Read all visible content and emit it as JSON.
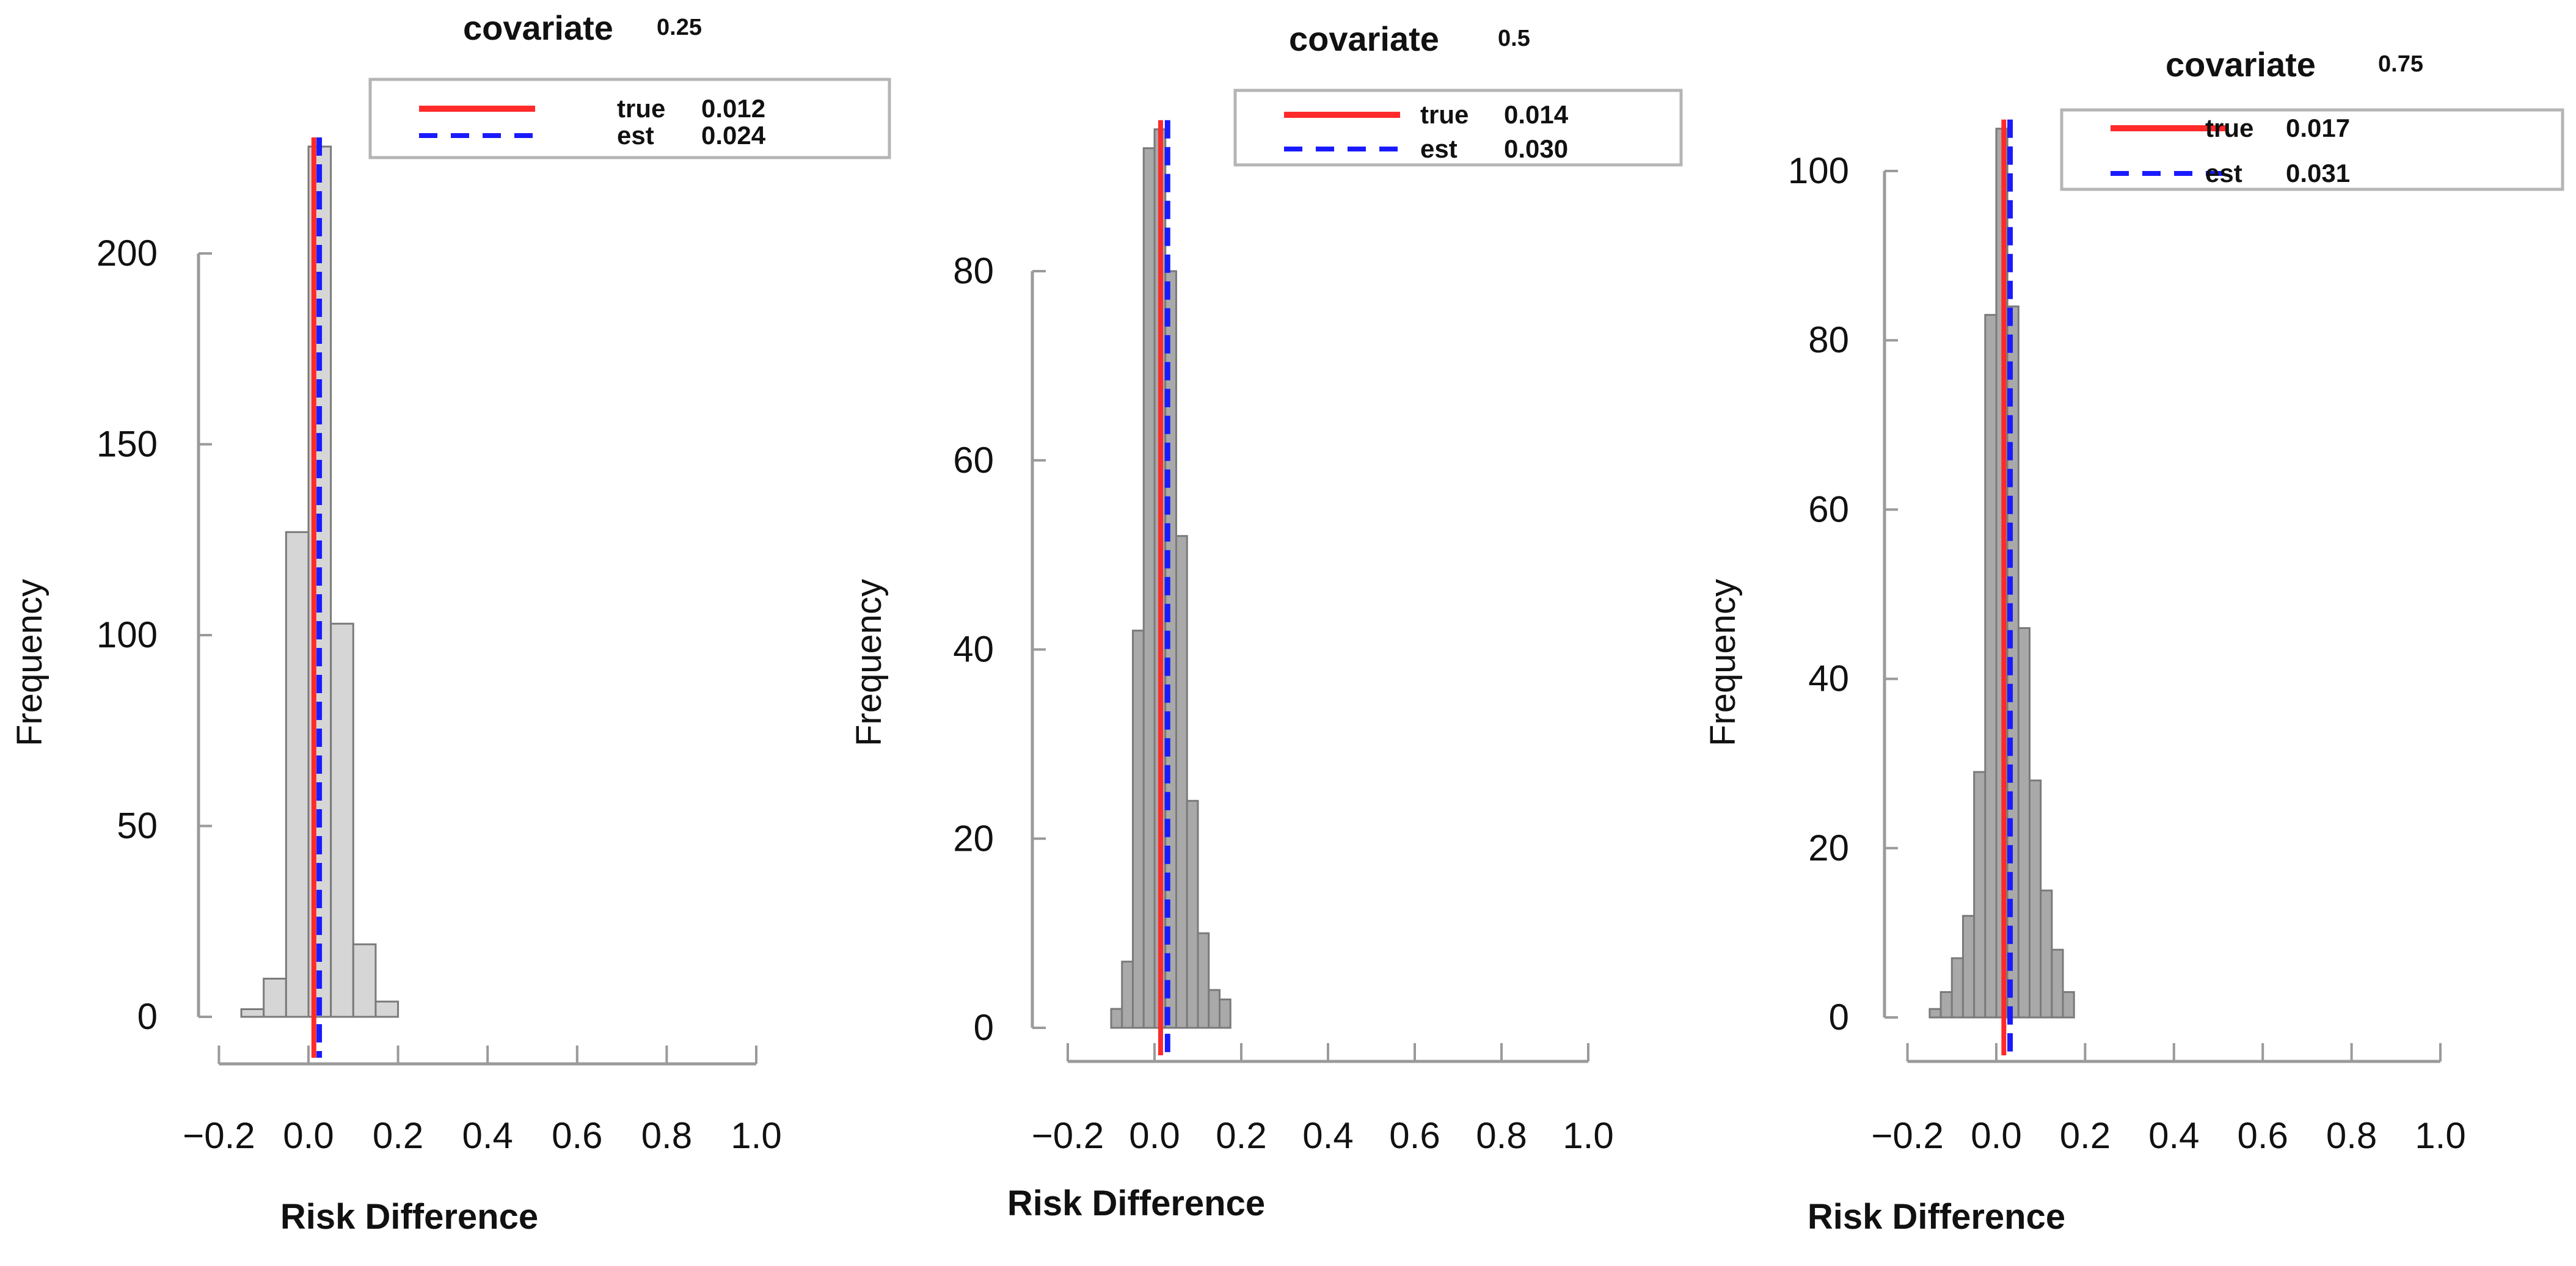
{
  "figure": {
    "description": "Three histograms of simulated risk differences for covariate levels 0.25, 0.5 and 0.75"
  },
  "chart_data": [
    {
      "type": "bar",
      "title_prefix": "covariate",
      "title_value": "0.25",
      "xlabel": "Risk Difference",
      "ylabel": "Frequency",
      "xlim": [
        -0.2,
        1.0
      ],
      "ylim": [
        0,
        200
      ],
      "xticks": [
        "-0.2",
        "0.0",
        "0.2",
        "0.4",
        "0.6",
        "0.8",
        "1.0"
      ],
      "yticks": [
        "0",
        "50",
        "100",
        "150",
        "200"
      ],
      "bin_edges": [
        -0.15,
        -0.1,
        -0.05,
        0.0,
        0.05,
        0.1,
        0.15,
        0.2
      ],
      "values": [
        2,
        10,
        127,
        228,
        103,
        19,
        4
      ],
      "vlines": [
        {
          "name": "true",
          "label": "true",
          "value": 0.012,
          "value_label": "0.012",
          "color": "#ff2a2a",
          "style": "solid"
        },
        {
          "name": "est",
          "label": "est",
          "value": 0.024,
          "value_label": "0.024",
          "color": "#1a1aff",
          "style": "dashed"
        }
      ]
    },
    {
      "type": "bar",
      "title_prefix": "covariate",
      "title_value": "0.5",
      "xlabel": "Risk Difference",
      "ylabel": "Frequency",
      "xlim": [
        -0.2,
        1.0
      ],
      "ylim": [
        0,
        80
      ],
      "xticks": [
        "-0.2",
        "0.0",
        "0.2",
        "0.4",
        "0.6",
        "0.8",
        "1.0"
      ],
      "yticks": [
        "0",
        "20",
        "40",
        "60",
        "80"
      ],
      "bin_edges": [
        -0.1,
        -0.075,
        -0.05,
        -0.025,
        0.0,
        0.025,
        0.05,
        0.075,
        0.1,
        0.125,
        0.15,
        0.175
      ],
      "values": [
        2,
        7,
        42,
        93,
        95,
        80,
        52,
        24,
        10,
        4,
        3
      ],
      "vlines": [
        {
          "name": "true",
          "label": "true",
          "value": 0.014,
          "value_label": "0.014",
          "color": "#ff2a2a",
          "style": "solid"
        },
        {
          "name": "est",
          "label": "est",
          "value": 0.03,
          "value_label": "0.030",
          "color": "#1a1aff",
          "style": "dashed"
        }
      ]
    },
    {
      "type": "bar",
      "title_prefix": "covariate",
      "title_value": "0.75",
      "xlabel": "Risk Difference",
      "ylabel": "Frequency",
      "xlim": [
        -0.2,
        1.0
      ],
      "ylim": [
        0,
        100
      ],
      "xticks": [
        "-0.2",
        "0.0",
        "0.2",
        "0.4",
        "0.6",
        "0.8",
        "1.0"
      ],
      "yticks": [
        "0",
        "20",
        "40",
        "60",
        "80",
        "100"
      ],
      "bin_edges": [
        -0.15,
        -0.125,
        -0.1,
        -0.075,
        -0.05,
        -0.025,
        0.0,
        0.025,
        0.05,
        0.075,
        0.1,
        0.125,
        0.15,
        0.175
      ],
      "values": [
        1,
        3,
        7,
        12,
        29,
        83,
        105,
        84,
        46,
        28,
        15,
        8,
        3
      ],
      "vlines": [
        {
          "name": "true",
          "label": "true",
          "value": 0.017,
          "value_label": "0.017",
          "color": "#ff2a2a",
          "style": "solid"
        },
        {
          "name": "est",
          "label": "est",
          "value": 0.031,
          "value_label": "0.031",
          "color": "#1a1aff",
          "style": "dashed"
        }
      ]
    }
  ]
}
